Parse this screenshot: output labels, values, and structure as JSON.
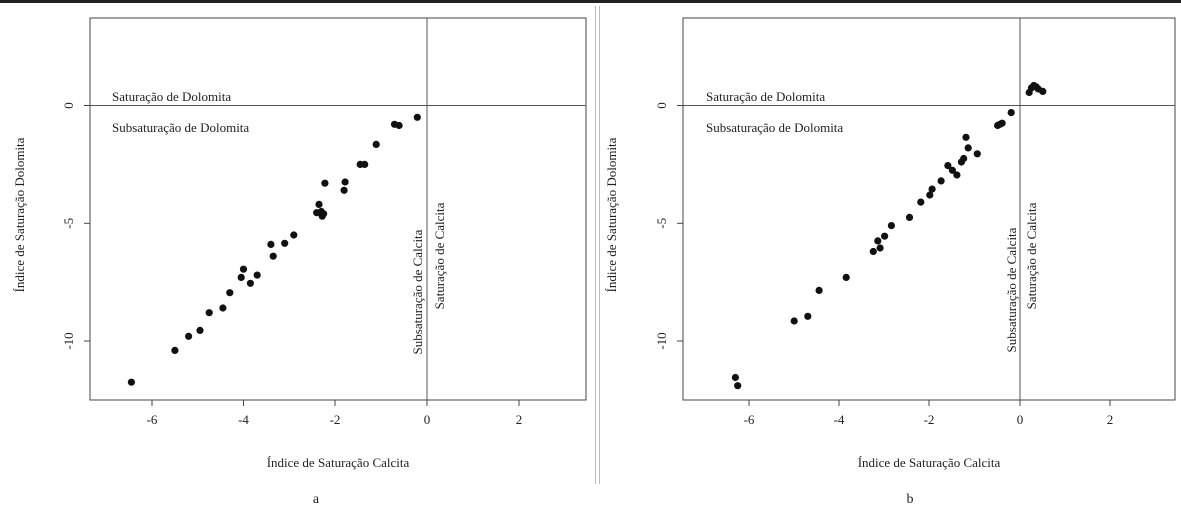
{
  "chart_data": [
    {
      "type": "scatter",
      "panel_label": "a",
      "xlabel": "Índice de Saturação Calcita",
      "ylabel": "Índice de Saturação Dolomita",
      "xlim": [
        -7.5,
        3.5
      ],
      "ylim": [
        -12.5,
        3.5
      ],
      "xticks": [
        -6,
        -4,
        -2,
        0,
        2
      ],
      "yticks": [
        0,
        -5,
        -10
      ],
      "reference_lines": {
        "x": 0,
        "y": 0
      },
      "annotations": {
        "above": "Saturação de Dolomita",
        "below": "Subsaturação de Dolomita",
        "left": "Subsaturação de Calcita",
        "right": "Saturação de Calcita"
      },
      "points": [
        [
          -6.45,
          -11.75
        ],
        [
          -5.5,
          -10.4
        ],
        [
          -5.2,
          -9.8
        ],
        [
          -4.95,
          -9.55
        ],
        [
          -4.75,
          -8.8
        ],
        [
          -4.45,
          -8.6
        ],
        [
          -4.3,
          -7.95
        ],
        [
          -4.05,
          -7.3
        ],
        [
          -4.0,
          -6.95
        ],
        [
          -3.85,
          -7.55
        ],
        [
          -3.7,
          -7.2
        ],
        [
          -3.4,
          -5.9
        ],
        [
          -3.35,
          -6.4
        ],
        [
          -3.1,
          -5.85
        ],
        [
          -2.9,
          -5.5
        ],
        [
          -2.4,
          -4.55
        ],
        [
          -2.35,
          -4.2
        ],
        [
          -2.3,
          -4.5
        ],
        [
          -2.28,
          -4.7
        ],
        [
          -2.25,
          -4.6
        ],
        [
          -2.22,
          -3.3
        ],
        [
          -1.8,
          -3.6
        ],
        [
          -1.78,
          -3.25
        ],
        [
          -1.45,
          -2.5
        ],
        [
          -1.35,
          -2.5
        ],
        [
          -1.1,
          -1.65
        ],
        [
          -0.7,
          -0.8
        ],
        [
          -0.6,
          -0.85
        ],
        [
          -0.2,
          -0.5
        ]
      ]
    },
    {
      "type": "scatter",
      "panel_label": "b",
      "xlabel": "Índice de Saturação Calcita",
      "ylabel": "Índice de Saturação Dolomita",
      "xlim": [
        -7.5,
        3.5
      ],
      "ylim": [
        -12.5,
        3.5
      ],
      "xticks": [
        -6,
        -4,
        -2,
        0,
        2
      ],
      "yticks": [
        0,
        -5,
        -10
      ],
      "reference_lines": {
        "x": 0,
        "y": 0
      },
      "annotations": {
        "above": "Saturação de Dolomita",
        "below": "Subsaturação de Dolomita",
        "left": "Subsaturação de Calcita",
        "right": "Saturação de Calcita"
      },
      "points": [
        [
          -6.3,
          -11.55
        ],
        [
          -6.25,
          -11.9
        ],
        [
          -5.0,
          -9.15
        ],
        [
          -4.7,
          -8.95
        ],
        [
          -4.45,
          -7.85
        ],
        [
          -3.85,
          -7.3
        ],
        [
          -3.25,
          -6.2
        ],
        [
          -3.15,
          -5.75
        ],
        [
          -3.1,
          -6.05
        ],
        [
          -3.0,
          -5.55
        ],
        [
          -2.85,
          -5.1
        ],
        [
          -2.45,
          -4.75
        ],
        [
          -2.2,
          -4.1
        ],
        [
          -2.0,
          -3.8
        ],
        [
          -1.95,
          -3.55
        ],
        [
          -1.75,
          -3.2
        ],
        [
          -1.6,
          -2.55
        ],
        [
          -1.5,
          -2.75
        ],
        [
          -1.4,
          -2.95
        ],
        [
          -1.3,
          -2.4
        ],
        [
          -1.25,
          -2.25
        ],
        [
          -1.2,
          -1.35
        ],
        [
          -1.15,
          -1.8
        ],
        [
          -0.95,
          -2.05
        ],
        [
          -0.5,
          -0.85
        ],
        [
          -0.45,
          -0.8
        ],
        [
          -0.4,
          -0.75
        ],
        [
          -0.2,
          -0.3
        ],
        [
          0.2,
          0.55
        ],
        [
          0.25,
          0.75
        ],
        [
          0.3,
          0.85
        ],
        [
          0.35,
          0.8
        ],
        [
          0.4,
          0.7
        ],
        [
          0.5,
          0.6
        ]
      ]
    }
  ]
}
